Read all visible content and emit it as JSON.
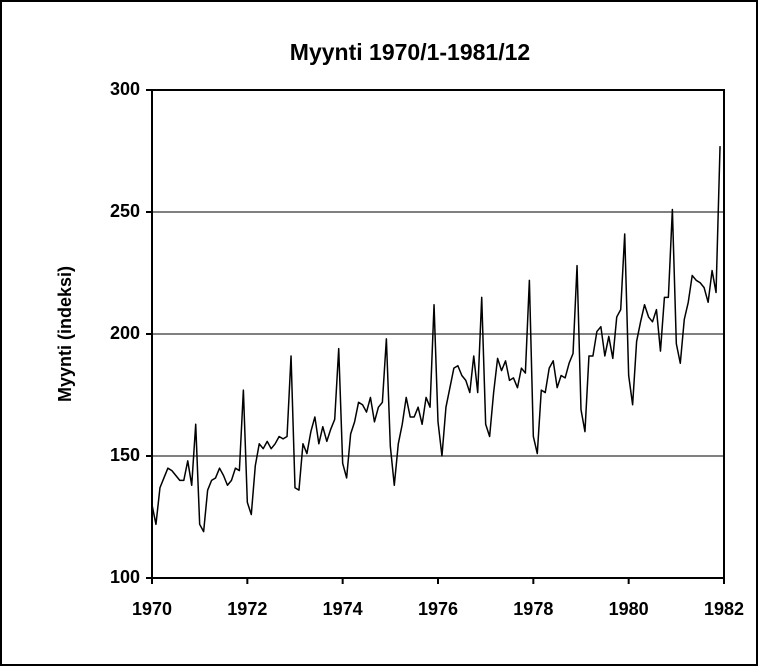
{
  "chart_data": {
    "type": "line",
    "title": "Myynti 1970/1-1981/12",
    "y_label": "Myynti (indeksi)",
    "x": [
      1970,
      1970.083,
      1970.167,
      1970.25,
      1970.333,
      1970.417,
      1970.5,
      1970.583,
      1970.667,
      1970.75,
      1970.833,
      1970.917,
      1971,
      1971.083,
      1971.167,
      1971.25,
      1971.333,
      1971.417,
      1971.5,
      1971.583,
      1971.667,
      1971.75,
      1971.833,
      1971.917,
      1972,
      1972.083,
      1972.167,
      1972.25,
      1972.333,
      1972.417,
      1972.5,
      1972.583,
      1972.667,
      1972.75,
      1972.833,
      1972.917,
      1973,
      1973.083,
      1973.167,
      1973.25,
      1973.333,
      1973.417,
      1973.5,
      1973.583,
      1973.667,
      1973.75,
      1973.833,
      1973.917,
      1974,
      1974.083,
      1974.167,
      1974.25,
      1974.333,
      1974.417,
      1974.5,
      1974.583,
      1974.667,
      1974.75,
      1974.833,
      1974.917,
      1975,
      1975.083,
      1975.167,
      1975.25,
      1975.333,
      1975.417,
      1975.5,
      1975.583,
      1975.667,
      1975.75,
      1975.833,
      1975.917,
      1976,
      1976.083,
      1976.167,
      1976.25,
      1976.333,
      1976.417,
      1976.5,
      1976.583,
      1976.667,
      1976.75,
      1976.833,
      1976.917,
      1977,
      1977.083,
      1977.167,
      1977.25,
      1977.333,
      1977.417,
      1977.5,
      1977.583,
      1977.667,
      1977.75,
      1977.833,
      1977.917,
      1978,
      1978.083,
      1978.167,
      1978.25,
      1978.333,
      1978.417,
      1978.5,
      1978.583,
      1978.667,
      1978.75,
      1978.833,
      1978.917,
      1979,
      1979.083,
      1979.167,
      1979.25,
      1979.333,
      1979.417,
      1979.5,
      1979.583,
      1979.667,
      1979.75,
      1979.833,
      1979.917,
      1980,
      1980.083,
      1980.167,
      1980.25,
      1980.333,
      1980.417,
      1980.5,
      1980.583,
      1980.667,
      1980.75,
      1980.833,
      1980.917,
      1981,
      1981.083,
      1981.167,
      1981.25,
      1981.333,
      1981.417,
      1981.5,
      1981.583,
      1981.667,
      1981.75,
      1981.833,
      1981.917
    ],
    "values": [
      130,
      122,
      137,
      141,
      145,
      144,
      142,
      140,
      140,
      148,
      138,
      163,
      122,
      119,
      136,
      140,
      141,
      145,
      142,
      138,
      140,
      145,
      144,
      177,
      131,
      126,
      146,
      155,
      153,
      156,
      153,
      155,
      158,
      157,
      158,
      191,
      137,
      136,
      155,
      151,
      160,
      166,
      155,
      162,
      156,
      161,
      165,
      194,
      147,
      141,
      159,
      164,
      172,
      171,
      168,
      174,
      164,
      170,
      172,
      198,
      154,
      138,
      155,
      163,
      174,
      166,
      166,
      170,
      163,
      174,
      170,
      212,
      164,
      150,
      170,
      178,
      186,
      187,
      183,
      181,
      176,
      191,
      176,
      215,
      163,
      158,
      176,
      190,
      185,
      189,
      181,
      182,
      178,
      186,
      184,
      222,
      158,
      151,
      177,
      176,
      186,
      189,
      178,
      183,
      182,
      188,
      192,
      228,
      169,
      160,
      191,
      191,
      201,
      203,
      191,
      199,
      190,
      207,
      210,
      241,
      183,
      171,
      197,
      205,
      212,
      207,
      205,
      210,
      193,
      215,
      215,
      251,
      196,
      188,
      206,
      213,
      224,
      222,
      221,
      219,
      213,
      226,
      217,
      277
    ],
    "color": "#000000",
    "xlim": [
      1970,
      1982
    ],
    "xticks": [
      1970,
      1972,
      1974,
      1976,
      1978,
      1980,
      1982
    ],
    "ylim": [
      100,
      300
    ],
    "yticks": [
      100,
      150,
      200,
      250,
      300
    ],
    "grid": true
  }
}
